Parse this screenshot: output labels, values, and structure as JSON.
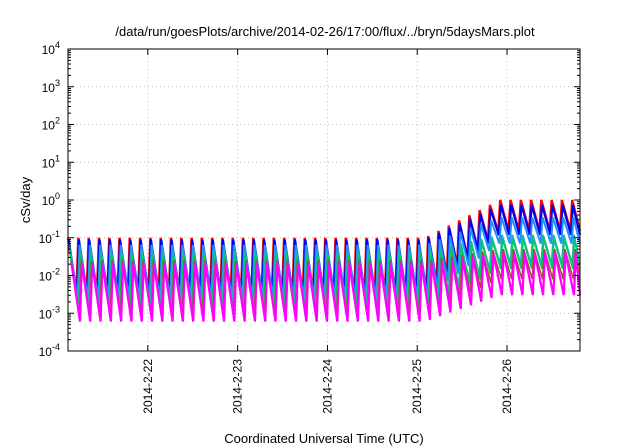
{
  "chart_data": {
    "type": "line",
    "title": "/data/run/goesPlots/archive/2014-02-26/17:00/flux/../bryn/5daysMars.plot",
    "xlabel": "Coordinated Universal Time (UTC)",
    "ylabel": "cSv/day",
    "yscale": "log",
    "ylim": [
      0.0001,
      10000
    ],
    "y_ticks": [
      {
        "base": "10",
        "exp": "-4",
        "value": 0.0001
      },
      {
        "base": "10",
        "exp": "-3",
        "value": 0.001
      },
      {
        "base": "10",
        "exp": "-2",
        "value": 0.01
      },
      {
        "base": "10",
        "exp": "-1",
        "value": 0.1
      },
      {
        "base": "10",
        "exp": "0",
        "value": 1
      },
      {
        "base": "10",
        "exp": "1",
        "value": 10
      },
      {
        "base": "10",
        "exp": "2",
        "value": 100
      },
      {
        "base": "10",
        "exp": "3",
        "value": 1000
      },
      {
        "base": "10",
        "exp": "4",
        "value": 10000
      }
    ],
    "xlim": [
      "2014-02-21T02:40",
      "2014-02-26T19:30"
    ],
    "x_ticks": [
      {
        "label": "2014-2-22",
        "value": "2014-02-22T00:00"
      },
      {
        "label": "2014-2-23",
        "value": "2014-02-23T00:00"
      },
      {
        "label": "2014-2-24",
        "value": "2014-02-24T00:00"
      },
      {
        "label": "2014-2-25",
        "value": "2014-02-25T00:00"
      },
      {
        "label": "2014-2-26",
        "value": "2014-02-26T00:00"
      }
    ],
    "grid": true,
    "cycle_hours": 2.75,
    "series": [
      {
        "color": "#ff0000",
        "width": 2.4,
        "quiet_peak": 0.1,
        "quiet_trough": 0.0035,
        "storm_peak": 1.0,
        "storm_trough": 0.15
      },
      {
        "color": "#0000ee",
        "width": 2.2,
        "quiet_peak": 0.09,
        "quiet_trough": 0.003,
        "storm_peak": 0.75,
        "storm_trough": 0.12
      },
      {
        "color": "#1e90ff",
        "width": 2.0,
        "quiet_peak": 0.065,
        "quiet_trough": 0.0025,
        "storm_peak": 0.35,
        "storm_trough": 0.07
      },
      {
        "color": "#20b2aa",
        "width": 1.8,
        "quiet_peak": 0.045,
        "quiet_trough": 0.0015,
        "storm_peak": 0.12,
        "storm_trough": 0.02
      },
      {
        "color": "#00cc66",
        "width": 1.5,
        "quiet_peak": 0.035,
        "quiet_trough": 0.0012,
        "storm_peak": 0.09,
        "storm_trough": 0.015
      },
      {
        "color": "#a0522d",
        "width": 1.5,
        "quiet_peak": 0.025,
        "quiet_trough": 0.0009,
        "storm_peak": 0.05,
        "storm_trough": 0.008
      },
      {
        "color": "#ff00ff",
        "width": 2.2,
        "quiet_peak": 0.02,
        "quiet_trough": 0.0006,
        "storm_peak": 0.04,
        "storm_trough": 0.003
      }
    ]
  }
}
